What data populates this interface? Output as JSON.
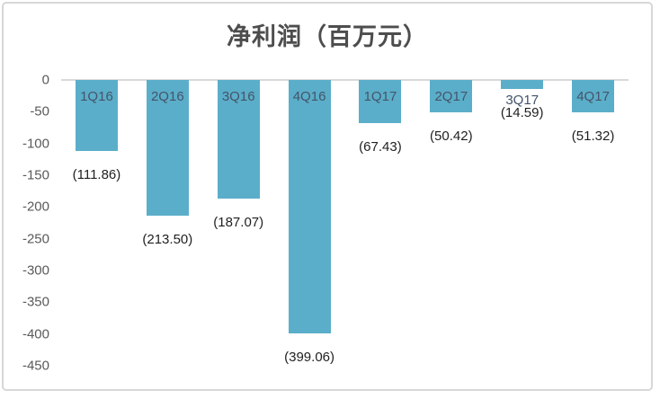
{
  "chart_data": {
    "type": "bar",
    "title": "净利润（百万元）",
    "categories": [
      "1Q16",
      "2Q16",
      "3Q16",
      "4Q16",
      "1Q17",
      "2Q17",
      "3Q17",
      "4Q17"
    ],
    "values": [
      -111.86,
      -213.5,
      -187.07,
      -399.06,
      -67.43,
      -50.42,
      -14.59,
      -51.32
    ],
    "value_labels": [
      "(111.86)",
      "(213.50)",
      "(187.07)",
      "(399.06)",
      "(67.43)",
      "(50.42)",
      "(14.59)",
      "(51.32)"
    ],
    "y_ticks": [
      0,
      -50,
      -100,
      -150,
      -200,
      -250,
      -300,
      -350,
      -400,
      -450
    ],
    "ylim": [
      -450,
      0
    ],
    "xlabel": "",
    "ylabel": "",
    "legend": "none",
    "grid": "zero-line-only",
    "negative_format": "parentheses",
    "category_label_position": "inside-top",
    "value_label_position": "outside-end",
    "bar_color": "#5baec9",
    "category_label_color": "#44546a",
    "value_label_color": "#1f1f1f",
    "axis_label_color": "#595959",
    "title_color": "#4d4d4d",
    "zero_line_color": "#d9d9d9",
    "frame_border_color": "#d7d7d7",
    "background_color": "#ffffff"
  }
}
